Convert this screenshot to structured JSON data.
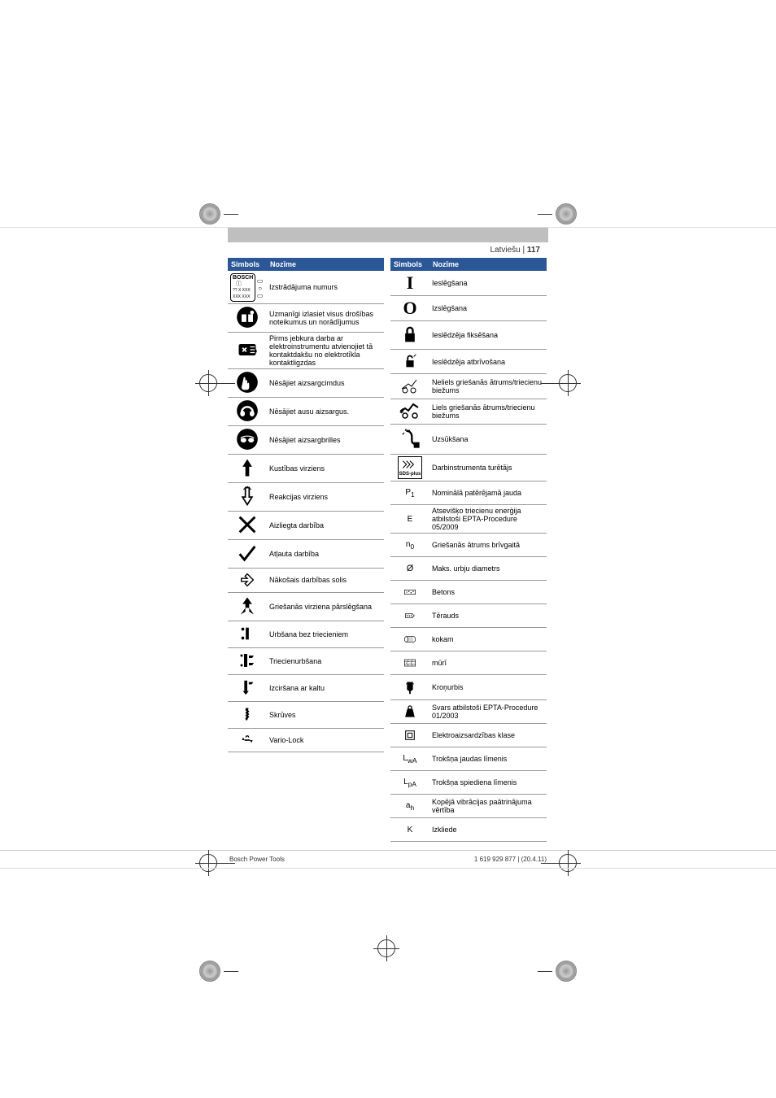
{
  "header": {
    "language": "Latviešu",
    "separator": " | ",
    "pageNumber": "117"
  },
  "tableHeaders": {
    "symbol": "Simbols",
    "meaning": "Nozīme"
  },
  "leftRows": [
    {
      "icon": "product-plate",
      "text": "Izstrādājuma numurs"
    },
    {
      "icon": "read-manual",
      "text": "Uzmanīgi izlasiet visus drošības noteikumus un norādījumus"
    },
    {
      "icon": "unplug",
      "text": "Pirms jebkura darba ar elektroinstrumentu atvienojiet tā kontaktdakšu no elektrotīkla kontaktligzdas"
    },
    {
      "icon": "gloves",
      "text": "Nēsājiet aizsargcimdus"
    },
    {
      "icon": "ear-protection",
      "text": "Nēsājiet ausu aizsargus."
    },
    {
      "icon": "goggles",
      "text": "Nēsājiet aizsargbrilles"
    },
    {
      "icon": "arrow-up",
      "text": "Kustības virziens"
    },
    {
      "icon": "reaction-arrow",
      "text": "Reakcijas virziens"
    },
    {
      "icon": "x",
      "text": "Aizliegta darbība"
    },
    {
      "icon": "check",
      "text": "Atļauta darbība"
    },
    {
      "icon": "next-step",
      "text": "Nākošais darbības solis"
    },
    {
      "icon": "rotation-switch",
      "text": "Griešanās virziena pārslēgšana"
    },
    {
      "icon": "drill-no-impact",
      "text": "Urbšana bez triecieniem"
    },
    {
      "icon": "hammer-drill",
      "text": "Triecienurbšana"
    },
    {
      "icon": "chisel-hammer",
      "text": "Izciršana ar kaltu"
    },
    {
      "icon": "screws",
      "text": "Skrūves"
    },
    {
      "icon": "vario-lock",
      "text": "Vario-Lock"
    }
  ],
  "rightRows": [
    {
      "icon": "I",
      "text": "Ieslēgšana"
    },
    {
      "icon": "O",
      "text": "Izslēgšana"
    },
    {
      "icon": "lock",
      "text": "Ieslēdzēja fiksēšana"
    },
    {
      "icon": "unlock",
      "text": "Ieslēdzēja atbrīvošana"
    },
    {
      "icon": "low-speed",
      "text": "Neliels griešanās ātrums/triecienu biežums"
    },
    {
      "icon": "high-speed",
      "text": "Liels griešanās ātrums/triecienu biežums"
    },
    {
      "icon": "vacuum",
      "text": "Uzsūkšana"
    },
    {
      "icon": "sds-plus",
      "text": "Darbinstrumenta turētājs"
    },
    {
      "icon": "P1",
      "text": "Nominālā patērējamā jauda"
    },
    {
      "icon": "E",
      "text": "Atsevišķo triecienu enerģija atbilstoši EPTA-Procedure 05/2009"
    },
    {
      "icon": "n0",
      "text": "Griešanās ātrums brīvgaitā"
    },
    {
      "icon": "dia",
      "text": "Maks. urbju diametrs"
    },
    {
      "icon": "concrete",
      "text": "Betons"
    },
    {
      "icon": "steel",
      "text": "Tērauds"
    },
    {
      "icon": "wood",
      "text": "kokam"
    },
    {
      "icon": "masonry",
      "text": "mūrī"
    },
    {
      "icon": "core-bit",
      "text": "Kroņurbis"
    },
    {
      "icon": "weight",
      "text": "Svars atbilstoši EPTA-Procedure 01/2003"
    },
    {
      "icon": "class2",
      "text": "Elektroaizsardzības klase"
    },
    {
      "icon": "LwA",
      "text": "Trokšņa jaudas līmenis"
    },
    {
      "icon": "LpA",
      "text": "Trokšņa spiediena līmenis"
    },
    {
      "icon": "ah",
      "text": "Kopējā vibrācijas paātrinājuma vērtība"
    },
    {
      "icon": "K",
      "text": "Izkliede"
    }
  ],
  "footer": {
    "left": "Bosch Power Tools",
    "right": "1 619 929 877 | (20.4.11)"
  },
  "colors": {
    "headerBg": "#2b5797",
    "banner": "#bfbfbf"
  }
}
